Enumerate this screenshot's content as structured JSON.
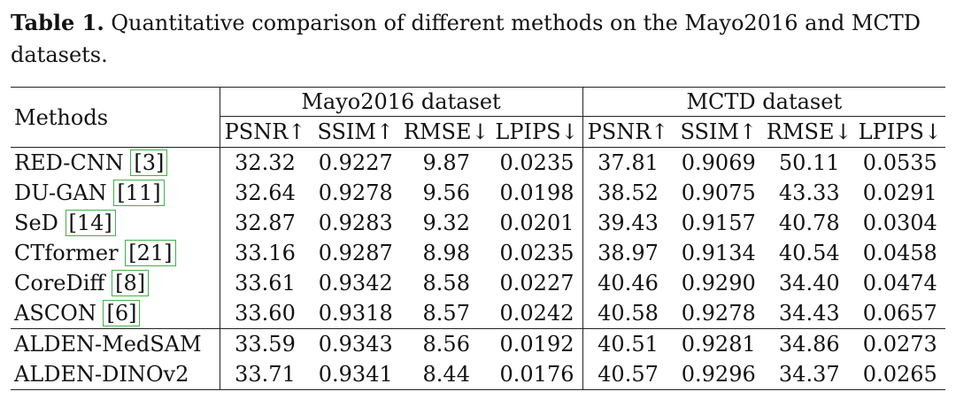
{
  "caption": {
    "label": "Table 1.",
    "text": "Quantitative comparison of different methods on the Mayo2016 and MCTD datasets."
  },
  "table": {
    "methods_header": "Methods",
    "groups": [
      "Mayo2016 dataset",
      "MCTD dataset"
    ],
    "metrics": [
      "PSNR↑",
      "SSIM↑",
      "RMSE↓",
      "LPIPS↓",
      "PSNR↑",
      "SSIM↑",
      "RMSE↓",
      "LPIPS↓"
    ],
    "rows": [
      {
        "method": "RED-CNN",
        "ref": "[3]",
        "values": [
          "32.32",
          "0.9227",
          "9.87",
          "0.0235",
          "37.81",
          "0.9069",
          "50.11",
          "0.0535"
        ]
      },
      {
        "method": "DU-GAN",
        "ref": "[11]",
        "values": [
          "32.64",
          "0.9278",
          "9.56",
          "0.0198",
          "38.52",
          "0.9075",
          "43.33",
          "0.0291"
        ]
      },
      {
        "method": "SeD",
        "ref": "[14]",
        "values": [
          "32.87",
          "0.9283",
          "9.32",
          "0.0201",
          "39.43",
          "0.9157",
          "40.78",
          "0.0304"
        ]
      },
      {
        "method": "CTformer",
        "ref": "[21]",
        "values": [
          "33.16",
          "0.9287",
          "8.98",
          "0.0235",
          "38.97",
          "0.9134",
          "40.54",
          "0.0458"
        ]
      },
      {
        "method": "CoreDiff",
        "ref": "[8]",
        "values": [
          "33.61",
          "0.9342",
          "8.58",
          "0.0227",
          "40.46",
          "0.9290",
          "34.40",
          "0.0474"
        ]
      },
      {
        "method": "ASCON",
        "ref": "[6]",
        "values": [
          "33.60",
          "0.9318",
          "8.57",
          "0.0242",
          "40.58",
          "0.9278",
          "34.43",
          "0.0657"
        ]
      },
      {
        "method": "ALDEN-MedSAM",
        "ref": "",
        "values": [
          "33.59",
          "0.9343",
          "8.56",
          "0.0192",
          "40.51",
          "0.9281",
          "34.86",
          "0.0273"
        ]
      },
      {
        "method": "ALDEN-DINOv2",
        "ref": "",
        "values": [
          "33.71",
          "0.9341",
          "8.44",
          "0.0176",
          "40.57",
          "0.9296",
          "34.37",
          "0.0265"
        ]
      }
    ]
  }
}
